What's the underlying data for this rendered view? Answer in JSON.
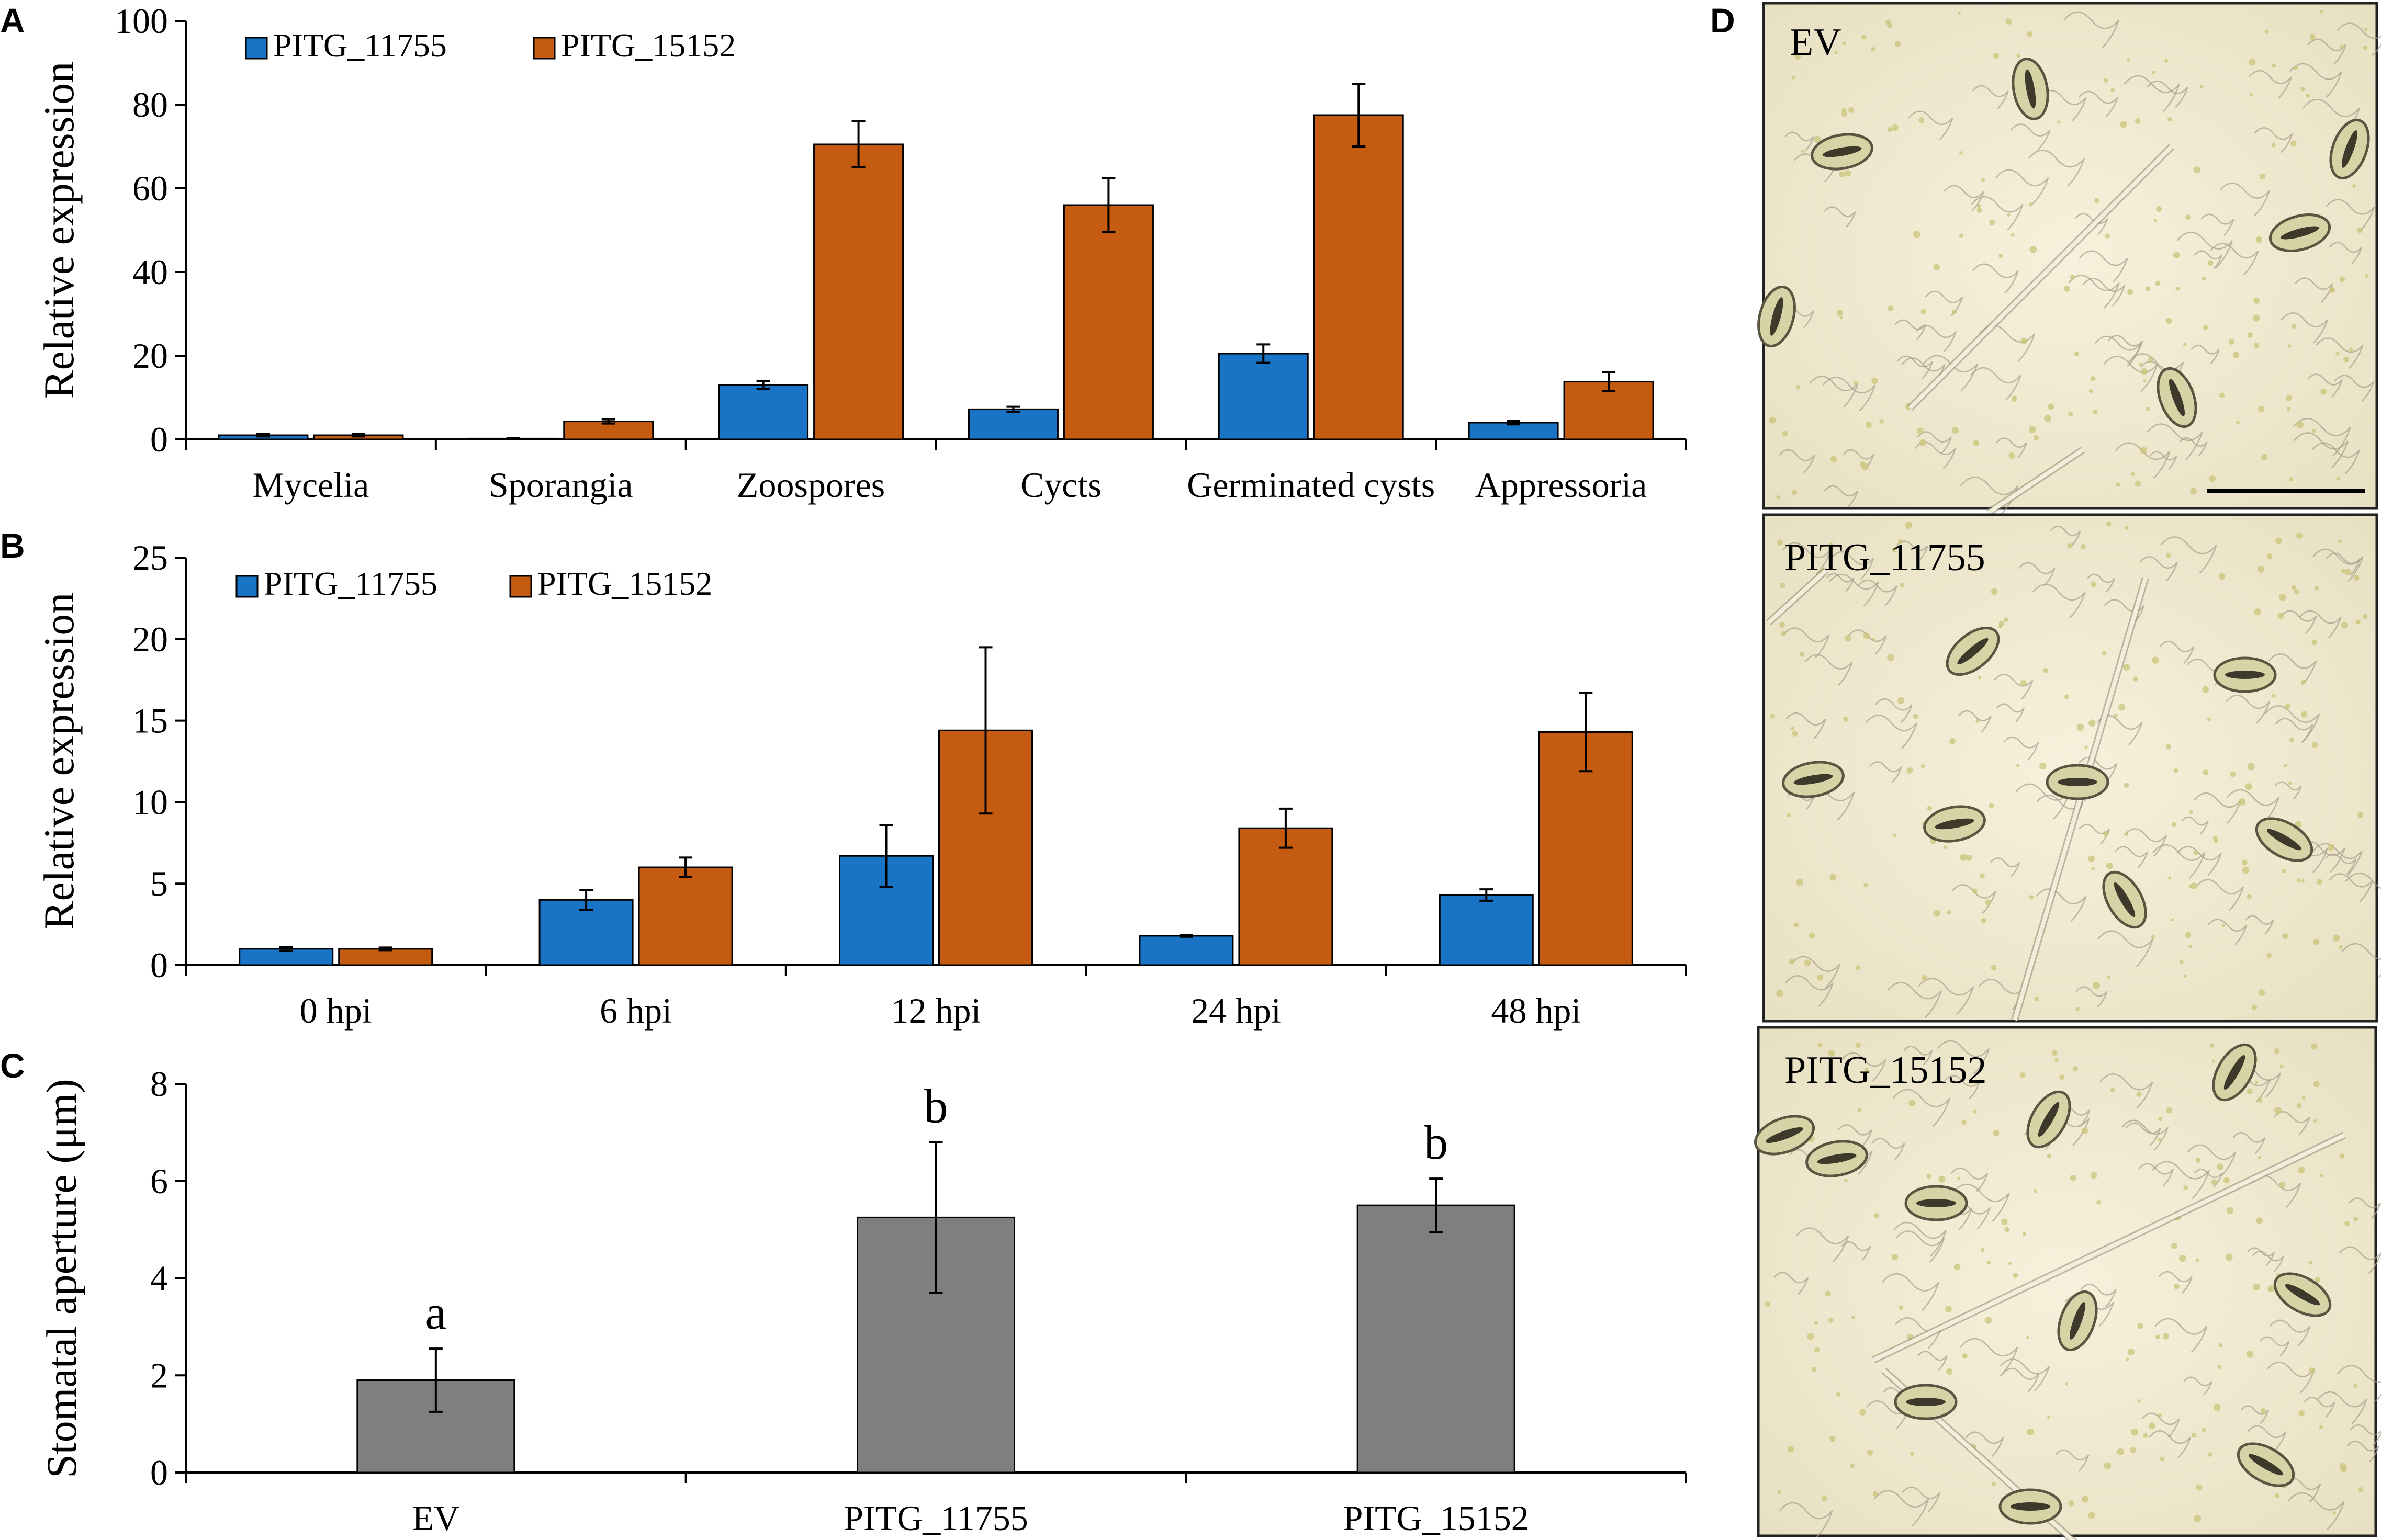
{
  "panels": {
    "A": "A",
    "B": "B",
    "C": "C",
    "D": "D"
  },
  "colors": {
    "series1": "#1a74c6",
    "series2": "#c55a11",
    "gray": "#7f7f7f",
    "micro_bg": "#efe9d2"
  },
  "chart_data": [
    {
      "id": "A",
      "type": "bar",
      "title": "",
      "xlabel": "",
      "ylabel": "Relative expression",
      "ylim": [
        0,
        100
      ],
      "yticks": [
        0,
        20,
        40,
        60,
        80,
        100
      ],
      "legend": "top-left",
      "categories": [
        "Mycelia",
        "Sporangia",
        "Zoospores",
        "Cycts",
        "Germinated cysts",
        "Appressoria"
      ],
      "series": [
        {
          "name": "PITG_11755",
          "values": [
            1,
            0.2,
            13,
            7.2,
            20.5,
            4
          ],
          "errors": [
            0.3,
            0.1,
            1,
            0.6,
            2.2,
            0.4
          ]
        },
        {
          "name": "PITG_15152",
          "values": [
            1,
            4.3,
            70.5,
            56,
            77.5,
            13.8
          ],
          "errors": [
            0.3,
            0.5,
            5.5,
            6.5,
            7.5,
            2.2
          ]
        }
      ]
    },
    {
      "id": "B",
      "type": "bar",
      "title": "",
      "xlabel": "",
      "ylabel": "Relative expression",
      "ylim": [
        0,
        25
      ],
      "yticks": [
        0,
        5,
        10,
        15,
        20,
        25
      ],
      "legend": "top-left",
      "categories": [
        "0 hpi",
        "6 hpi",
        "12 hpi",
        "24 hpi",
        "48 hpi"
      ],
      "series": [
        {
          "name": "PITG_11755",
          "values": [
            1,
            4,
            6.7,
            1.8,
            4.3
          ],
          "errors": [
            0.12,
            0.6,
            1.9,
            0.06,
            0.35
          ]
        },
        {
          "name": "PITG_15152",
          "values": [
            1,
            6,
            14.4,
            8.4,
            14.3
          ],
          "errors": [
            0.08,
            0.6,
            5.1,
            1.2,
            2.4
          ]
        }
      ]
    },
    {
      "id": "C",
      "type": "bar",
      "title": "",
      "xlabel": "",
      "ylabel": "Stomatal aperture (μm)",
      "ylim": [
        0,
        8
      ],
      "yticks": [
        0,
        2,
        4,
        6,
        8
      ],
      "categories": [
        "EV",
        "PITG_11755",
        "PITG_15152"
      ],
      "series": [
        {
          "name": "Stomatal aperture",
          "values": [
            1.9,
            5.25,
            5.5
          ],
          "errors": [
            0.65,
            1.55,
            0.55
          ]
        }
      ],
      "annotations": [
        "a",
        "b",
        "b"
      ]
    }
  ],
  "micrographs": [
    {
      "label": "EV"
    },
    {
      "label": "PITG_11755"
    },
    {
      "label": "PITG_15152"
    }
  ]
}
